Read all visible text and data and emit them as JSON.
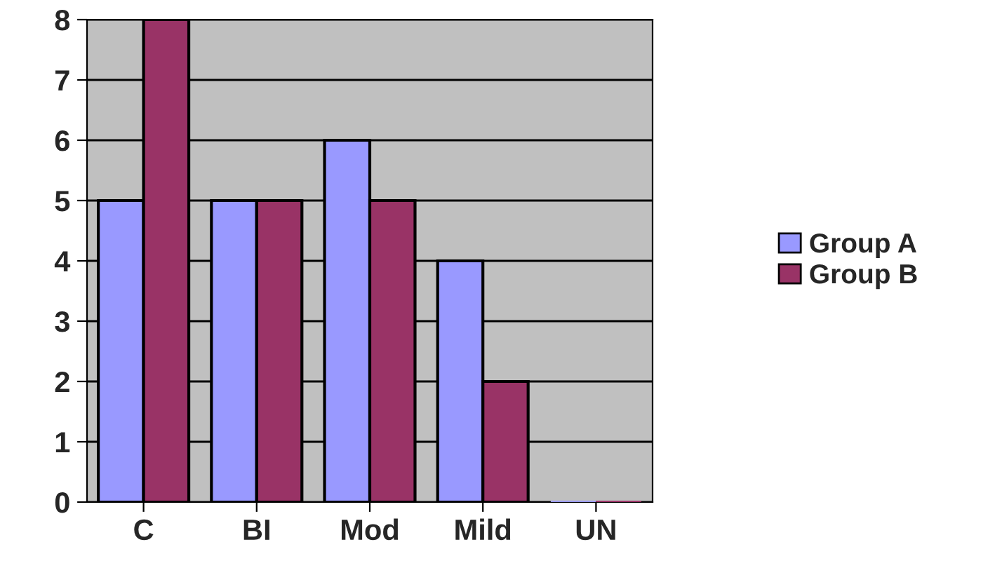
{
  "chart_data": {
    "type": "bar",
    "categories": [
      "C",
      "BI",
      "Mod",
      "Mild",
      "UN"
    ],
    "series": [
      {
        "name": "Group A",
        "color": "#9999ff",
        "values": [
          5,
          5,
          6,
          4,
          0
        ]
      },
      {
        "name": "Group B",
        "color": "#993366",
        "values": [
          8,
          5,
          5,
          2,
          0
        ]
      }
    ],
    "ylim": [
      0,
      8
    ],
    "yticks": [
      0,
      1,
      2,
      3,
      4,
      5,
      6,
      7,
      8
    ],
    "grid": "y",
    "legend": "right"
  }
}
